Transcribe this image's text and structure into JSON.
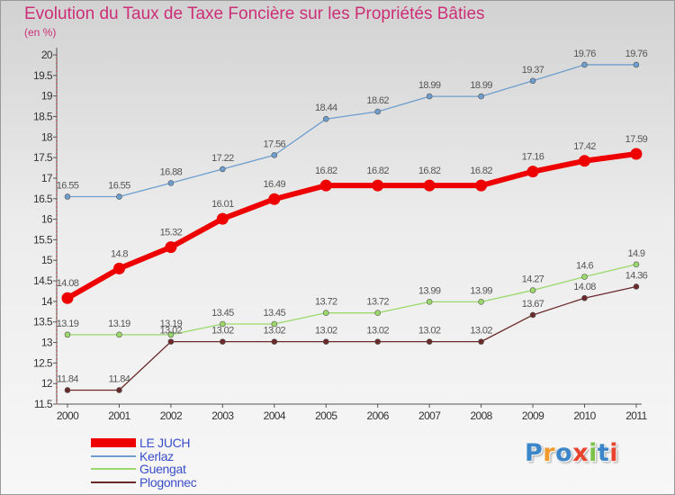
{
  "chart_data": {
    "type": "line",
    "title": "Evolution du Taux de Taxe Foncière sur les Propriétés Bâties",
    "unit_label": "(en %)",
    "xlabel": "",
    "ylabel": "(en %)",
    "grid": false,
    "legend_position": "bottom-left",
    "ylim": [
      11.5,
      20
    ],
    "y_ticks": [
      "11.5",
      "12",
      "12.5",
      "13",
      "13.5",
      "14",
      "14.5",
      "15",
      "15.5",
      "16",
      "16.5",
      "17",
      "17.5",
      "18",
      "18.5",
      "19",
      "19.5",
      "20"
    ],
    "categories": [
      "2000",
      "2001",
      "2002",
      "2003",
      "2004",
      "2005",
      "2006",
      "2007",
      "2008",
      "2009",
      "2010",
      "2011"
    ],
    "series": [
      {
        "name": "LE JUCH",
        "color": "#ee0000",
        "emphasis": true,
        "values": [
          14.08,
          14.8,
          15.32,
          16.01,
          16.49,
          16.82,
          16.82,
          16.82,
          16.82,
          17.16,
          17.42,
          17.59
        ],
        "labels": [
          "14.08",
          "14.8",
          "15.32",
          "16.01",
          "16.49",
          "16.82",
          "16.82",
          "16.82",
          "16.82",
          "17.16",
          "17.42",
          "17.59"
        ]
      },
      {
        "name": "Kerlaz",
        "color": "#6d9ece",
        "values": [
          16.55,
          16.55,
          16.88,
          17.22,
          17.56,
          18.44,
          18.62,
          18.99,
          18.99,
          19.37,
          19.76,
          19.76
        ],
        "labels": [
          "16.55",
          "16.55",
          "16.88",
          "17.22",
          "17.56",
          "18.44",
          "18.62",
          "18.99",
          "18.99",
          "19.37",
          "19.76",
          "19.76"
        ]
      },
      {
        "name": "Guengat",
        "color": "#9ad96a",
        "values": [
          13.19,
          13.19,
          13.19,
          13.45,
          13.45,
          13.72,
          13.72,
          13.99,
          13.99,
          14.27,
          14.6,
          14.9
        ],
        "labels": [
          "13.19",
          "13.19",
          "13.19",
          "13.45",
          "13.45",
          "13.72",
          "13.72",
          "13.99",
          "13.99",
          "14.27",
          "14.6",
          "14.9"
        ]
      },
      {
        "name": "Plogonnec",
        "color": "#6b2a2a",
        "values": [
          11.84,
          11.84,
          13.02,
          13.02,
          13.02,
          13.02,
          13.02,
          13.02,
          13.02,
          13.67,
          14.08,
          14.36
        ],
        "labels": [
          "11.84",
          "11.84",
          "13.02",
          "13.02",
          "13.02",
          "13.02",
          "13.02",
          "13.02",
          "13.02",
          "13.67",
          "14.08",
          "14.36"
        ]
      }
    ]
  },
  "logo": {
    "text": "Proxiti",
    "letters": [
      "P",
      "r",
      "o",
      "x",
      "i",
      "t",
      "i"
    ],
    "colors": [
      "#3a86c8",
      "#f09a2c",
      "#3a86c8",
      "#e8432c",
      "#7cc24a",
      "#3a86c8",
      "#e8432c"
    ]
  }
}
